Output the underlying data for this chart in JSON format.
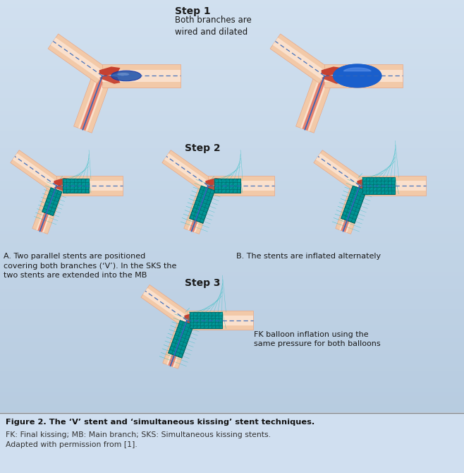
{
  "bg_color_top": "#b8cee0",
  "bg_color_bot": "#d0dff0",
  "skin": "#f2c9a8",
  "skin_shadow": "#e8a888",
  "skin_light": "#fae0cc",
  "red_dark": "#c03020",
  "red_med": "#d84030",
  "teal": "#009090",
  "teal_dark": "#006868",
  "teal_light": "#00b8b8",
  "blue_balloon": "#1a4faa",
  "blue_balloon_light": "#4488dd",
  "blue_balloon_inflated": "#1a5fcc",
  "wire": "#3366bb",
  "caption_bg": "#d5dce2",
  "step1_label": "Step 1",
  "step1_text": "Both branches are\nwired and dilated",
  "step2_label": "Step 2",
  "stepA_text": "A. Two parallel stents are positioned\ncovering both branches (‘V’). In the SKS the\ntwo stents are extended into the MB",
  "stepB_text": "B. The stents are inflated alternately",
  "step3_label": "Step 3",
  "step3_text": "FK balloon inflation using the\nsame pressure for both balloons",
  "caption_bold": "Figure 2. The ‘V’ stent and ‘simultaneous kissing’ stent techniques.",
  "caption_normal": "FK: Final kissing; MB: Main branch; SKS: Simultaneous kissing stents.\nAdapted with permission from [1]."
}
